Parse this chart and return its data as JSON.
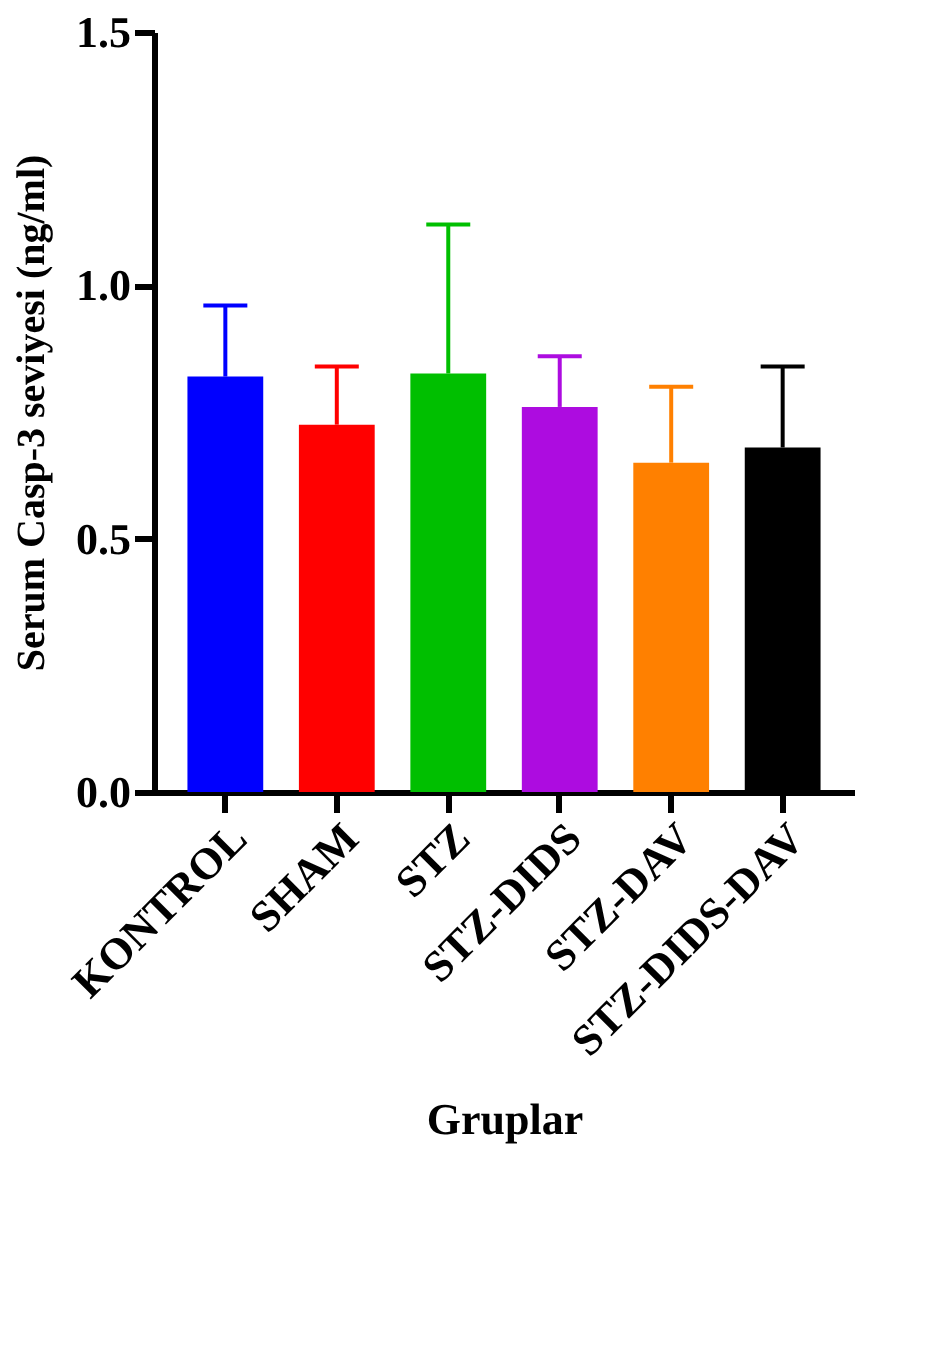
{
  "chart_data": {
    "type": "bar",
    "xlabel": "Gruplar",
    "ylabel": "Serum Casp-3 seviyesi (ng/ml)",
    "categories": [
      "KONTROL",
      "SHAM",
      "STZ",
      "STZ-DIDS",
      "STZ-DAV",
      "STZ-DIDS-DAV"
    ],
    "values": [
      0.82,
      0.725,
      0.826,
      0.76,
      0.65,
      0.68
    ],
    "colors": [
      "#0000ff",
      "#ff0000",
      "#00bf00",
      "#ad0ce0",
      "#ff8000",
      "#000000"
    ],
    "errors": [
      [
        0.82,
        0.96
      ],
      [
        0.725,
        0.84
      ],
      [
        0.826,
        1.12
      ],
      [
        0.76,
        0.86
      ],
      [
        0.65,
        0.8
      ],
      [
        0.68,
        0.84
      ]
    ],
    "ylim": [
      0,
      1.5
    ],
    "yticks": [
      {
        "value": 0,
        "label": "0.0"
      },
      {
        "value": 0.5,
        "label": "0.5"
      },
      {
        "value": 1.0,
        "label": "1.0"
      },
      {
        "value": 1.5,
        "label": "1.5"
      }
    ],
    "grid": false
  }
}
